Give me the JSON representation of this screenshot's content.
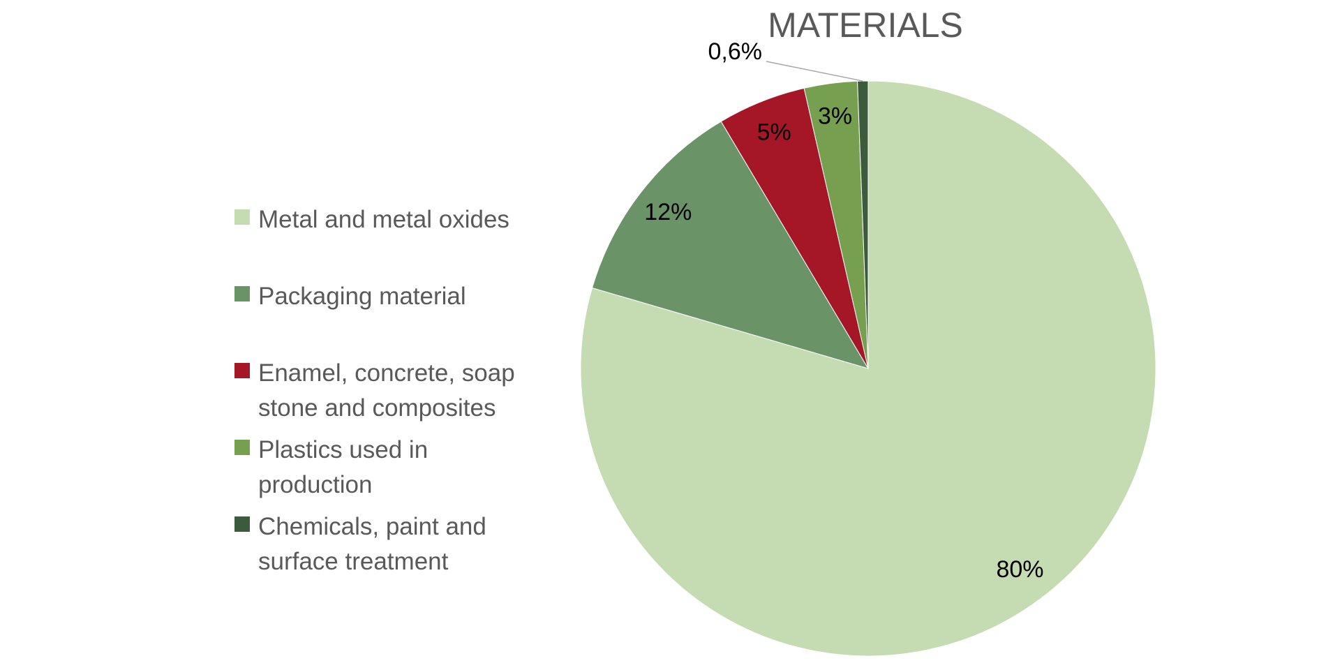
{
  "chart_data": {
    "type": "pie",
    "title": "MATERIALS",
    "categories": [
      "Metal and metal oxides",
      "Packaging material",
      "Enamel, concrete, soap stone and composites",
      "Plastics used in production",
      "Chemicals, paint and surface treatment"
    ],
    "values": [
      80,
      12,
      5,
      3,
      0.6
    ],
    "value_labels": [
      "80%",
      "12%",
      "5%",
      "3%",
      "0,6%"
    ],
    "colors": [
      "#c5dbb2",
      "#6b9368",
      "#a51727",
      "#76a050",
      "#3c5a3c"
    ],
    "legend": "left"
  }
}
